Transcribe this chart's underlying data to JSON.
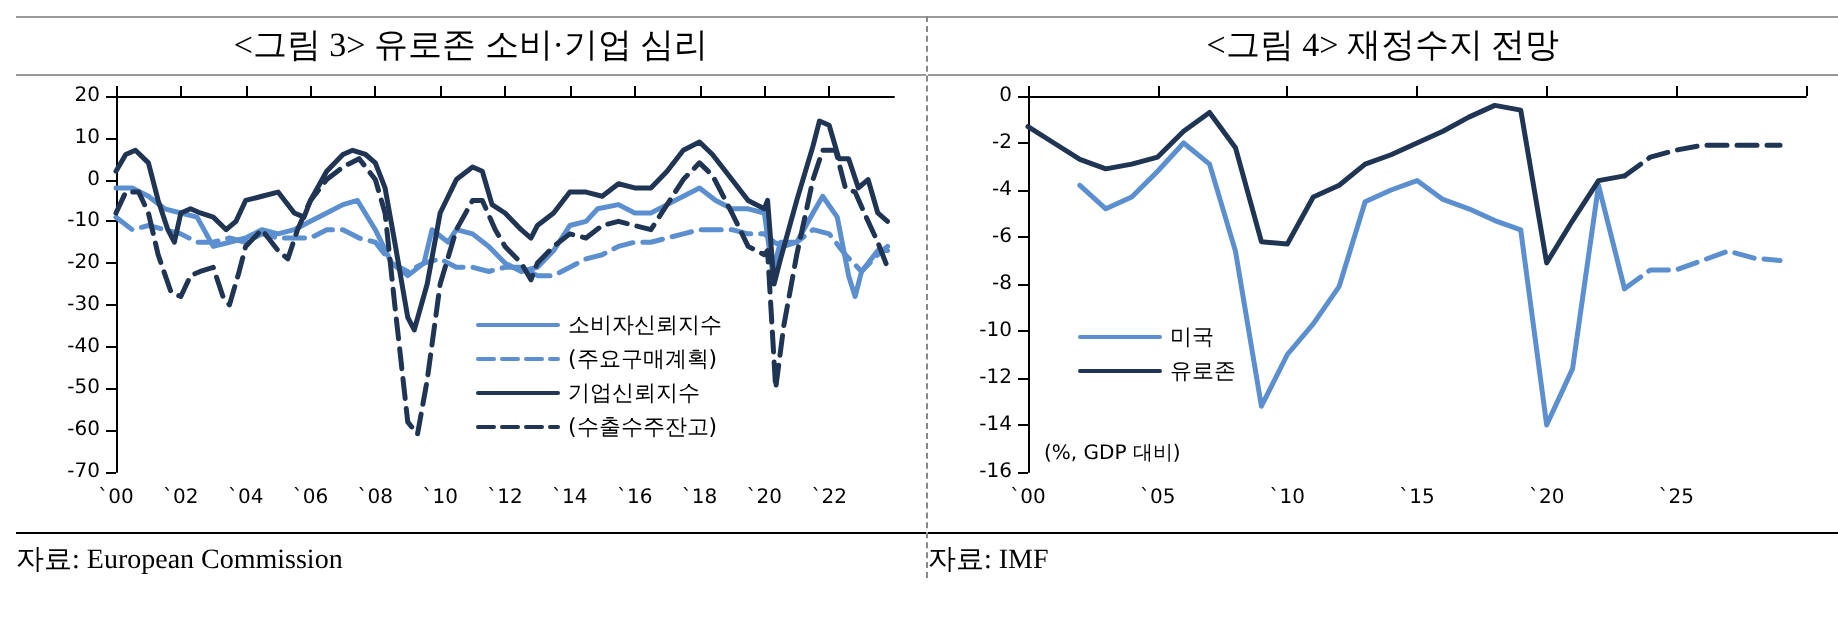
{
  "chart_data": [
    {
      "type": "line",
      "title": "<그림 3> 유로존 소비·기업 심리",
      "xlim": [
        0,
        24
      ],
      "xticks": [
        {
          "value": 0,
          "label": "`00"
        },
        {
          "value": 2,
          "label": "`02"
        },
        {
          "value": 4,
          "label": "`04"
        },
        {
          "value": 6,
          "label": "`06"
        },
        {
          "value": 8,
          "label": "`08"
        },
        {
          "value": 10,
          "label": "`10"
        },
        {
          "value": 12,
          "label": "`12"
        },
        {
          "value": 14,
          "label": "`14"
        },
        {
          "value": 16,
          "label": "`16"
        },
        {
          "value": 18,
          "label": "`18"
        },
        {
          "value": 20,
          "label": "`20"
        },
        {
          "value": 22,
          "label": "`22"
        }
      ],
      "ylim": [
        -70,
        20
      ],
      "yticks": [
        -70,
        -60,
        -50,
        -40,
        -30,
        -20,
        -10,
        0,
        10,
        20
      ],
      "grid": false,
      "legend": "bottom",
      "marker": "none",
      "annotations": [
        "자료: European Commission"
      ],
      "series": [
        {
          "name": "소비자신뢰지수",
          "color": "#5b8fd0",
          "line_style": "solid",
          "x": [
            0,
            0.5,
            1,
            1.5,
            2,
            2.5,
            3,
            3.5,
            4,
            4.5,
            5,
            5.5,
            6,
            6.5,
            7,
            7.45,
            8,
            8.5,
            9,
            9.5,
            9.75,
            10.25,
            10.5,
            11,
            11.5,
            12,
            12.5,
            13,
            13.5,
            14,
            14.5,
            14.86,
            15.5,
            16,
            16.5,
            17,
            17.5,
            18,
            18.5,
            19,
            19.5,
            20,
            20.25,
            20.5,
            21,
            21.5,
            21.8,
            22.25,
            22.6,
            22.8,
            23,
            23.5,
            23.8
          ],
          "values": [
            -2,
            -2,
            -4,
            -7,
            -8,
            -9,
            -16,
            -15,
            -14,
            -12,
            -13,
            -12,
            -10,
            -8,
            -6,
            -5,
            -12,
            -20,
            -23,
            -20,
            -12,
            -15,
            -12,
            -13,
            -16,
            -20,
            -22,
            -21,
            -17,
            -11,
            -10,
            -7,
            -6,
            -8,
            -8,
            -6,
            -4,
            -2,
            -5,
            -7,
            -7,
            -8,
            -22,
            -15,
            -15,
            -8,
            -4,
            -9,
            -23,
            -28,
            -22,
            -17,
            -17
          ]
        },
        {
          "name": "(주요구매계획)",
          "color": "#5b8fd0",
          "line_style": "dashed",
          "x": [
            0,
            0.5,
            1,
            1.5,
            2,
            2.5,
            3,
            3.5,
            4,
            4.5,
            5,
            5.5,
            6,
            6.5,
            7,
            7.5,
            8,
            8.5,
            9,
            9.5,
            10,
            10.5,
            11,
            11.5,
            12,
            12.5,
            13,
            13.5,
            14,
            14.5,
            15,
            15.5,
            16,
            16.5,
            17,
            17.5,
            18,
            18.5,
            19,
            19.5,
            20,
            20.3,
            20.6,
            21,
            21.5,
            22,
            22.5,
            23,
            23.5,
            23.8
          ],
          "values": [
            -9,
            -12,
            -11,
            -12,
            -13,
            -15,
            -15,
            -14,
            -15,
            -13,
            -14,
            -14,
            -14,
            -12,
            -12,
            -14,
            -15,
            -20,
            -22,
            -20,
            -19,
            -21,
            -21,
            -22,
            -21,
            -21,
            -23,
            -23,
            -21,
            -19,
            -18,
            -16,
            -15,
            -15,
            -14,
            -13,
            -12,
            -12,
            -12,
            -13,
            -13,
            -15,
            -16,
            -15,
            -12,
            -13,
            -18,
            -22,
            -18,
            -16
          ]
        },
        {
          "name": "기업신뢰지수",
          "color": "#1f3553",
          "line_style": "solid",
          "x": [
            0,
            0.3,
            0.6,
            1,
            1.3,
            1.6,
            1.8,
            2,
            2.3,
            2.6,
            3,
            3.4,
            3.7,
            4,
            4.5,
            5,
            5.5,
            5.8,
            6,
            6.5,
            7,
            7.3,
            7.7,
            8,
            8.3,
            8.6,
            9,
            9.2,
            9.6,
            10,
            10.5,
            11,
            11.3,
            11.6,
            12,
            12.5,
            12.8,
            13,
            13.5,
            14,
            14.5,
            15,
            15.5,
            16,
            16.5,
            17,
            17.5,
            18,
            18.4,
            19,
            19.5,
            20,
            20.1,
            20.3,
            20.5,
            21,
            21.5,
            21.7,
            22,
            22.3,
            22.6,
            22.9,
            23.2,
            23.5,
            23.8
          ],
          "values": [
            2,
            6,
            7,
            4,
            -5,
            -12,
            -15,
            -8,
            -7,
            -8,
            -9,
            -12,
            -10,
            -5,
            -4,
            -3,
            -8,
            -9,
            -5,
            2,
            6,
            7,
            6,
            4,
            -2,
            -15,
            -33,
            -36,
            -25,
            -8,
            0,
            3,
            2,
            -6,
            -8,
            -12,
            -14,
            -11,
            -8,
            -3,
            -3,
            -4,
            -1,
            -2,
            -2,
            2,
            7,
            9,
            6,
            0,
            -5,
            -7,
            -5,
            -25,
            -19,
            -5,
            8,
            14,
            13,
            5,
            5,
            -2,
            0,
            -8,
            -10
          ]
        },
        {
          "name": "(수출수주잔고)",
          "color": "#1f3553",
          "line_style": "dashed",
          "x": [
            0,
            0.3,
            0.7,
            1,
            1.3,
            1.7,
            2,
            2.3,
            2.6,
            3,
            3.3,
            3.5,
            3.8,
            4,
            4.5,
            5,
            5.3,
            5.6,
            6,
            6.5,
            7,
            7.5,
            8,
            8.3,
            8.6,
            9,
            9.3,
            9.6,
            10,
            10.5,
            11,
            11.3,
            11.7,
            12,
            12.5,
            12.8,
            13,
            13.5,
            14,
            14.5,
            15,
            15.5,
            16,
            16.5,
            17,
            17.5,
            18,
            18.4,
            19,
            19.5,
            20,
            20.1,
            20.35,
            20.6,
            21,
            21.5,
            21.8,
            22.2,
            22.5,
            22.8,
            23.2,
            23.5,
            23.8
          ],
          "values": [
            -8,
            -3,
            -3,
            -8,
            -18,
            -27,
            -28,
            -23,
            -22,
            -21,
            -28,
            -30,
            -22,
            -16,
            -12,
            -17,
            -19,
            -12,
            -5,
            0,
            3,
            5,
            0,
            -8,
            -30,
            -58,
            -61,
            -48,
            -25,
            -12,
            -5,
            -5,
            -12,
            -16,
            -20,
            -24,
            -20,
            -16,
            -13,
            -14,
            -11,
            -10,
            -11,
            -12,
            -6,
            0,
            4,
            1,
            -8,
            -16,
            -18,
            -17,
            -50,
            -35,
            -18,
            0,
            7,
            7,
            -2,
            -3,
            -10,
            -15,
            -21
          ]
        }
      ]
    },
    {
      "type": "line",
      "title": "<그림 4> 재정수지 전망",
      "ylabel": "(%, GDP 대비)",
      "xlim": [
        0,
        30
      ],
      "xticks": [
        {
          "value": 0,
          "label": "`00"
        },
        {
          "value": 5,
          "label": "`05"
        },
        {
          "value": 10,
          "label": "`10"
        },
        {
          "value": 15,
          "label": "`15"
        },
        {
          "value": 20,
          "label": "`20"
        },
        {
          "value": 25,
          "label": "`25"
        },
        {
          "value": 30,
          "label": null
        }
      ],
      "ylim": [
        -16,
        0
      ],
      "yticks": [
        -16,
        -14,
        -12,
        -10,
        -8,
        -6,
        -4,
        -2,
        0
      ],
      "grid": false,
      "legend": "bottom left",
      "marker": "none",
      "annotations": [
        "자료: IMF"
      ],
      "series": [
        {
          "name": "미국",
          "color": "#5b8fd0",
          "line_style": "solid",
          "x": [
            2,
            3,
            4,
            5,
            6,
            7,
            8,
            9,
            10,
            11,
            12,
            13,
            14,
            15,
            16,
            17,
            18,
            19,
            20,
            21,
            22,
            23
          ],
          "values": [
            -3.8,
            -4.8,
            -4.3,
            -3.2,
            -2.0,
            -2.9,
            -6.6,
            -13.2,
            -11.0,
            -9.7,
            -8.1,
            -4.5,
            -4.0,
            -3.6,
            -4.4,
            -4.8,
            -5.3,
            -5.7,
            -14.0,
            -11.6,
            -3.8,
            -8.2
          ]
        },
        {
          "name": "유로존",
          "color": "#1f3553",
          "line_style": "solid",
          "x": [
            0,
            1,
            2,
            3,
            4,
            5,
            6,
            7,
            8,
            9,
            10,
            11,
            12,
            13,
            14,
            15,
            16,
            17,
            18,
            19,
            20,
            21,
            22,
            23
          ],
          "values": [
            -1.3,
            -2.0,
            -2.7,
            -3.1,
            -2.9,
            -2.6,
            -1.5,
            -0.7,
            -2.2,
            -6.2,
            -6.3,
            -4.3,
            -3.8,
            -2.9,
            -2.5,
            -2.0,
            -1.5,
            -0.9,
            -0.4,
            -0.6,
            -7.1,
            -5.3,
            -3.6,
            -3.4
          ]
        },
        {
          "color": "#5b8fd0",
          "line_style": "dashed",
          "x": [
            23,
            24,
            25,
            26,
            27,
            28,
            29
          ],
          "values": [
            -8.2,
            -7.4,
            -7.4,
            -7.0,
            -6.6,
            -6.9,
            -7.0
          ]
        },
        {
          "color": "#1f3553",
          "line_style": "dashed",
          "x": [
            23,
            24,
            25,
            26,
            27,
            28,
            29
          ],
          "values": [
            -3.4,
            -2.6,
            -2.3,
            -2.1,
            -2.1,
            -2.1,
            -2.1
          ]
        }
      ]
    }
  ]
}
